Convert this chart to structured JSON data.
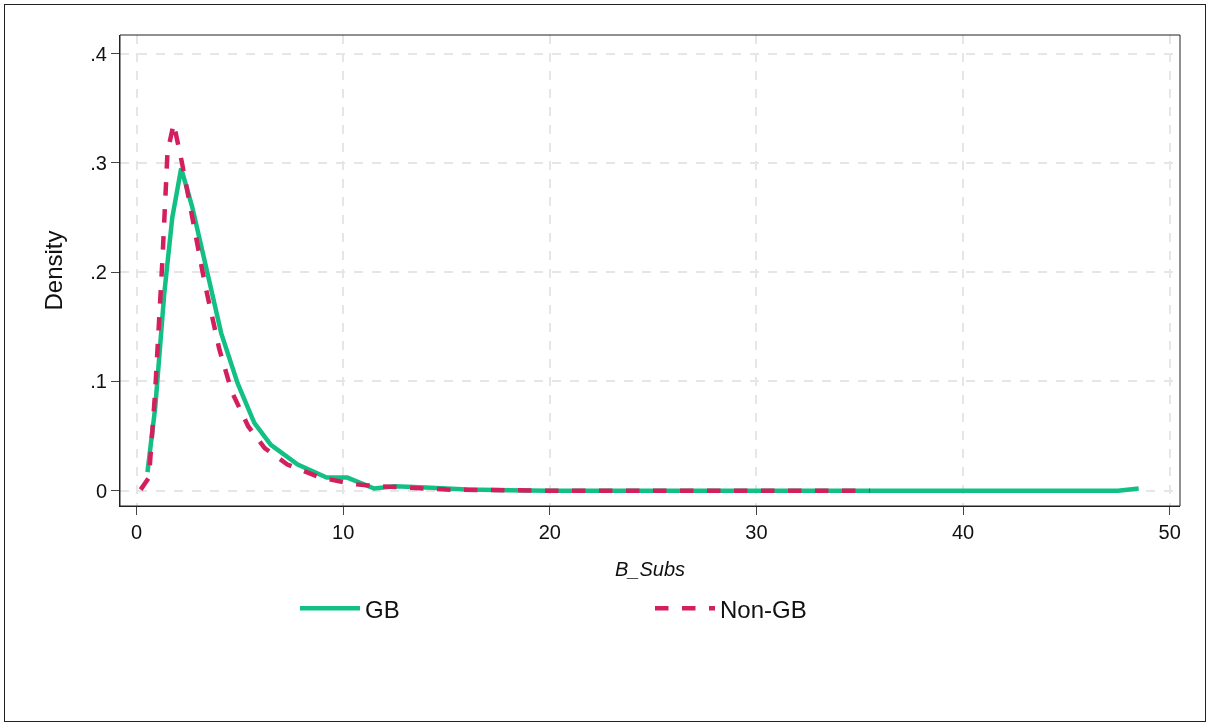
{
  "chart_data": {
    "type": "line",
    "xlabel": "B_Subs",
    "ylabel": "Density",
    "xlim": [
      -0.8,
      50.5
    ],
    "xticks": [
      0,
      10,
      20,
      30,
      40,
      50
    ],
    "ylim": [
      -0.014,
      0.417
    ],
    "yticks": [
      {
        "value": 0,
        "label": "0"
      },
      {
        "value": 0.1,
        "label": ".1"
      },
      {
        "value": 0.2,
        "label": ".2"
      },
      {
        "value": 0.3,
        "label": ".3"
      },
      {
        "value": 0.4,
        "label": ".4"
      }
    ],
    "grid": true,
    "legend": "bottom",
    "marker": "none",
    "series": [
      {
        "name": "GB",
        "color": "#13c083",
        "line_style": "solid",
        "x": [
          0.53,
          0.91,
          1.34,
          1.73,
          2.16,
          2.69,
          3.3,
          4.1,
          4.9,
          5.7,
          6.5,
          7.8,
          9.2,
          10.2,
          11.5,
          12.5,
          14,
          16,
          20,
          30,
          40,
          47.5,
          48.5
        ],
        "values": [
          0.017,
          0.077,
          0.18,
          0.25,
          0.295,
          0.26,
          0.21,
          0.144,
          0.098,
          0.062,
          0.042,
          0.024,
          0.012,
          0.012,
          0.002,
          0.004,
          0.003,
          0.001,
          0,
          0,
          0,
          0,
          0.002
        ]
      },
      {
        "name": "Non-GB",
        "color": "#d31f5f",
        "line_style": "dashed",
        "x": [
          0.2,
          0.6,
          0.9,
          1.25,
          1.5,
          1.8,
          2.2,
          2.7,
          3.3,
          4.0,
          4.6,
          5.4,
          6.2,
          7.3,
          8.9,
          10.5,
          11.7,
          13,
          15,
          20,
          30,
          35.5
        ],
        "values": [
          0.001,
          0.012,
          0.09,
          0.21,
          0.31,
          0.336,
          0.3,
          0.25,
          0.19,
          0.13,
          0.091,
          0.059,
          0.039,
          0.024,
          0.012,
          0.006,
          0.004,
          0.003,
          0.001,
          0,
          0,
          0
        ]
      }
    ]
  }
}
